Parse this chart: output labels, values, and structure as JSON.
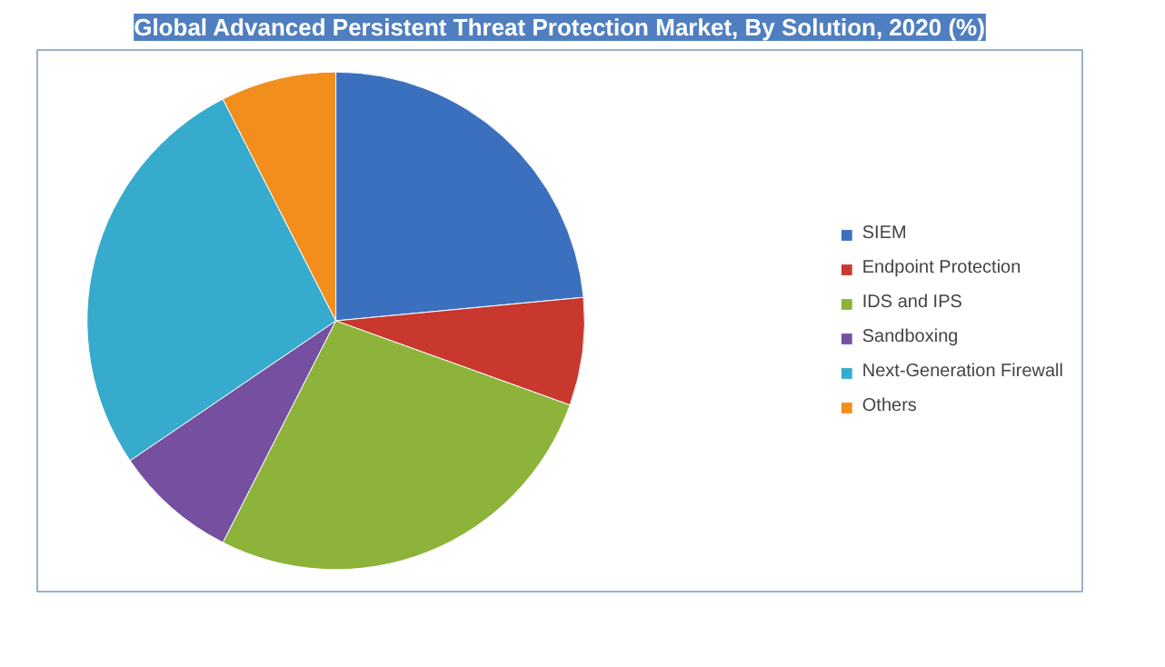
{
  "chart_data": {
    "type": "pie",
    "title": "Global Advanced Persistent Threat Protection Market, By Solution, 2020 (%)",
    "categories": [
      "SIEM",
      "Endpoint Protection",
      "IDS and IPS",
      "Sandboxing",
      "Next-Generation Firewall",
      "Others"
    ],
    "values": [
      23.5,
      7,
      27,
      8,
      27,
      7.5
    ],
    "colors": [
      "#3b70bf",
      "#c8382e",
      "#8db33a",
      "#7550a0",
      "#36abce",
      "#f28e1c"
    ],
    "legend": "right"
  }
}
